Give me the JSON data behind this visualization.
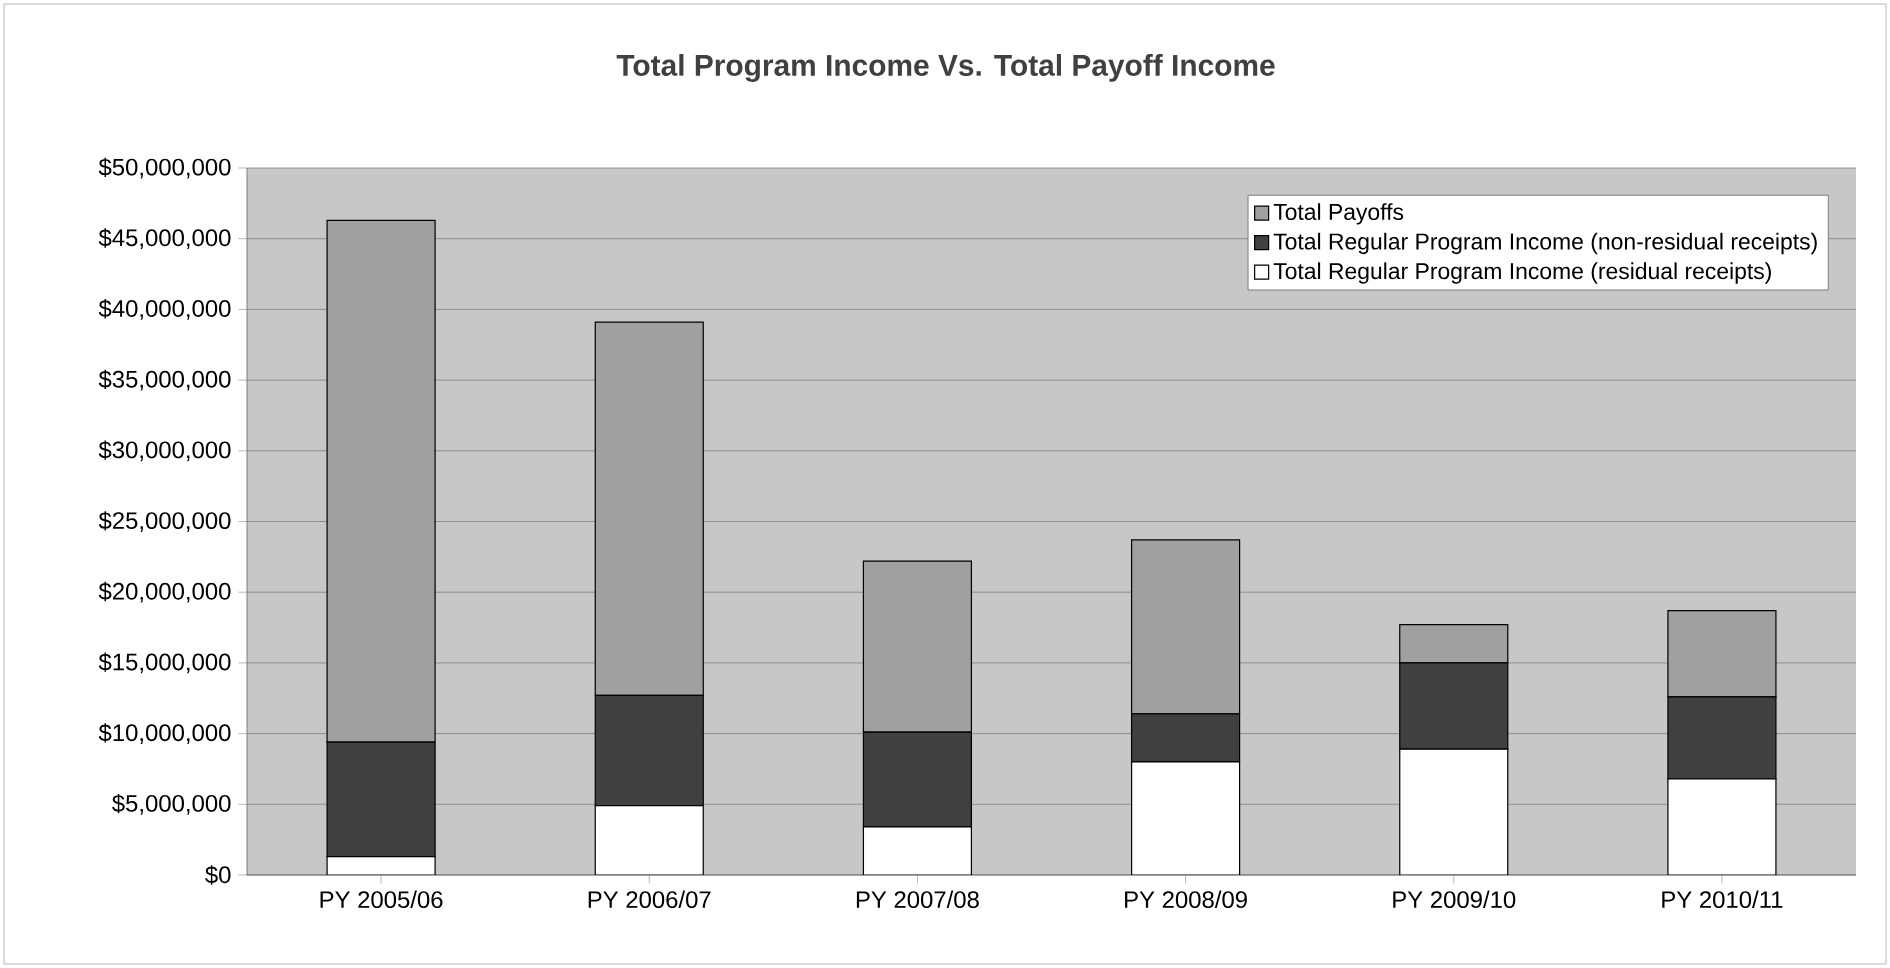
{
  "chart_data": {
    "type": "bar",
    "title": "Total Program Income Vs. Total Payoff Income",
    "categories": [
      "PY 2005/06",
      "PY 2006/07",
      "PY 2007/08",
      "PY 2008/09",
      "PY 2009/10",
      "PY 2010/11"
    ],
    "stacked": true,
    "series": [
      {
        "name": "Total Regular Program Income (residual receipts)",
        "color": "#ffffff",
        "values": [
          1300000,
          4900000,
          3400000,
          8000000,
          8900000,
          6800000
        ]
      },
      {
        "name": "Total Regular Program Income (non-residual receipts)",
        "color": "#404040",
        "values": [
          8100000,
          7800000,
          6700000,
          3400000,
          6100000,
          5800000
        ]
      },
      {
        "name": "Total Payoffs",
        "color": "#a0a0a0",
        "values": [
          36900000,
          26400000,
          12100000,
          12300000,
          2700000,
          6100000
        ]
      }
    ],
    "ylim": [
      0,
      50000000
    ],
    "yticks": [
      {
        "value": 0,
        "label": "$0"
      },
      {
        "value": 5000000,
        "label": "$5,000,000"
      },
      {
        "value": 10000000,
        "label": "$10,000,000"
      },
      {
        "value": 15000000,
        "label": "$15,000,000"
      },
      {
        "value": 20000000,
        "label": "$20,000,000"
      },
      {
        "value": 25000000,
        "label": "$25,000,000"
      },
      {
        "value": 30000000,
        "label": "$30,000,000"
      },
      {
        "value": 35000000,
        "label": "$35,000,000"
      },
      {
        "value": 40000000,
        "label": "$40,000,000"
      },
      {
        "value": 45000000,
        "label": "$45,000,000"
      },
      {
        "value": 50000000,
        "label": "$50,000,000"
      }
    ],
    "grid": "y",
    "legend": "top right"
  }
}
